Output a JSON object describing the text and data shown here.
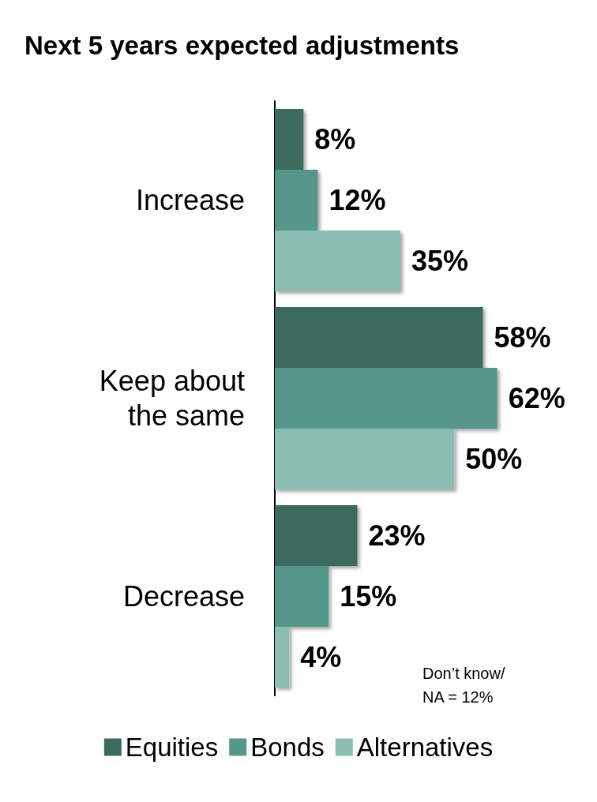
{
  "chart_data": {
    "type": "bar",
    "orientation": "horizontal",
    "title": "Next 5 years expected adjustments",
    "categories": [
      "Increase",
      "Keep about the same",
      "Decrease"
    ],
    "series": [
      {
        "name": "Equities",
        "color": "#3d6b5f",
        "values": [
          8,
          58,
          23
        ],
        "value_labels": [
          "8%",
          "58%",
          "23%"
        ]
      },
      {
        "name": "Bonds",
        "color": "#55978a",
        "values": [
          12,
          62,
          15
        ],
        "value_labels": [
          "12%",
          "62%",
          "15%"
        ]
      },
      {
        "name": "Alternatives",
        "color": "#8bbdb3",
        "values": [
          35,
          50,
          4
        ],
        "value_labels": [
          "35%",
          "50%",
          "4%"
        ]
      }
    ],
    "annotations": [
      "Don’t know/\nNA = 12%"
    ],
    "legend": "bottom",
    "grid": false
  }
}
